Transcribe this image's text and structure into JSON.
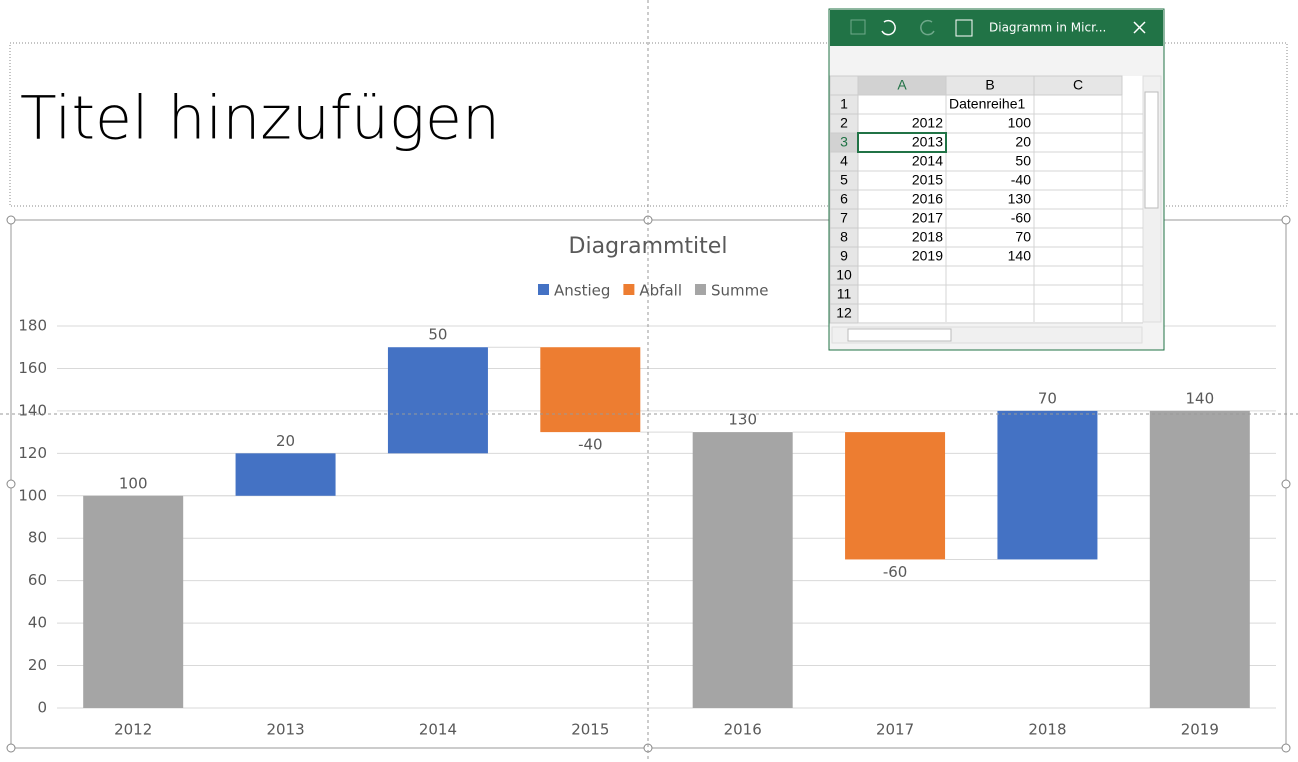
{
  "slide": {
    "title": "Titel hinzufügen"
  },
  "chart_data": {
    "type": "waterfall",
    "title": "Diagrammtitel",
    "categories": [
      "2012",
      "2013",
      "2014",
      "2015",
      "2016",
      "2017",
      "2018",
      "2019"
    ],
    "values": [
      100,
      20,
      50,
      -40,
      130,
      -60,
      70,
      140
    ],
    "totals": [
      true,
      false,
      false,
      false,
      true,
      false,
      false,
      true
    ],
    "legend": [
      {
        "name": "Anstieg",
        "color": "#4472c4"
      },
      {
        "name": "Abfall",
        "color": "#ed7d31"
      },
      {
        "name": "Summe",
        "color": "#a5a5a5"
      }
    ],
    "ylim": [
      0,
      180
    ],
    "yticks": [
      0,
      20,
      40,
      60,
      80,
      100,
      120,
      140,
      160,
      180
    ],
    "grid": true
  },
  "spreadsheet": {
    "title": "Diagramm in Micr...",
    "columns": [
      "A",
      "B",
      "C"
    ],
    "row_numbers": [
      1,
      2,
      3,
      4,
      5,
      6,
      7,
      8,
      9,
      10,
      11,
      12
    ],
    "cells": {
      "B1": "Datenreihe1",
      "A2": 2012,
      "B2": 100,
      "A3": 2013,
      "B3": 20,
      "A4": 2014,
      "B4": 50,
      "A5": 2015,
      "B5": -40,
      "A6": 2016,
      "B6": 130,
      "A7": 2017,
      "B7": -60,
      "A8": 2018,
      "B8": 70,
      "A9": 2019,
      "B9": 140
    }
  }
}
